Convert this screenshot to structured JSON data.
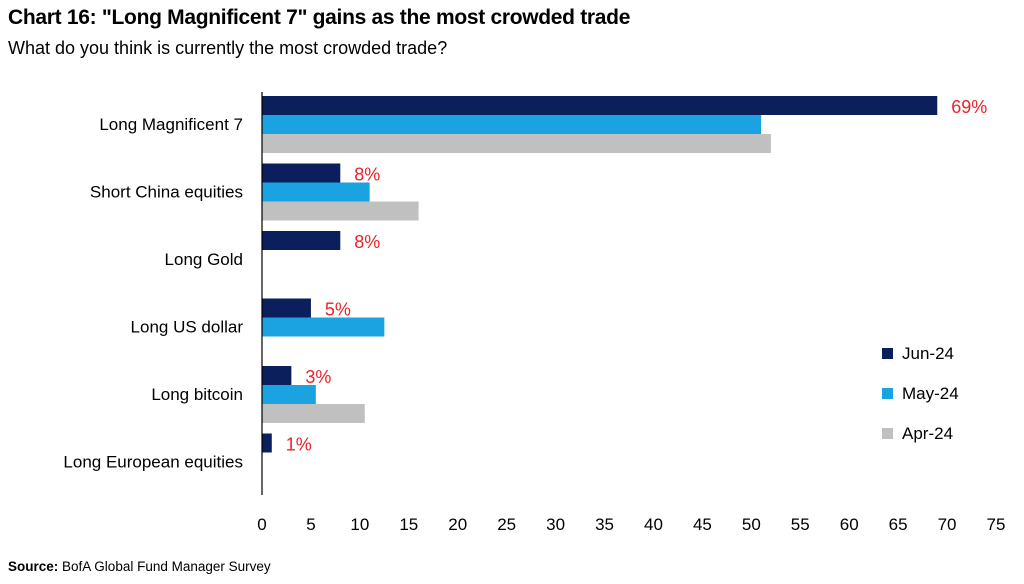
{
  "chart_data": {
    "type": "bar",
    "orientation": "horizontal",
    "title": "Chart 16: \"Long Magnificent 7\" gains as the most crowded trade",
    "subtitle": "What do you think is currently the most crowded trade?",
    "categories": [
      "Long Magnificent 7",
      "Short China equities",
      "Long Gold",
      "Long US dollar",
      "Long bitcoin",
      "Long European equities"
    ],
    "series": [
      {
        "name": "Jun-24",
        "color": "#0a1f5c",
        "values": [
          69,
          8,
          8,
          5,
          3,
          1
        ]
      },
      {
        "name": "May-24",
        "color": "#1aa3e0",
        "values": [
          51,
          11,
          0,
          12.5,
          5.5,
          0
        ]
      },
      {
        "name": "Apr-24",
        "color": "#c0c0c0",
        "values": [
          52,
          16,
          0,
          0,
          10.5,
          0
        ]
      }
    ],
    "data_labels": [
      "69%",
      "8%",
      "8%",
      "5%",
      "3%",
      "1%"
    ],
    "data_label_color": "#e8232a",
    "xticks": [
      "0",
      "5",
      "10",
      "15",
      "20",
      "25",
      "30",
      "35",
      "40",
      "45",
      "50",
      "55",
      "60",
      "65",
      "70",
      "75"
    ],
    "xlim": [
      0,
      75
    ],
    "grid": false,
    "legend": "right"
  },
  "source": {
    "label": "Source:",
    "text": "BofA Global Fund Manager Survey"
  }
}
